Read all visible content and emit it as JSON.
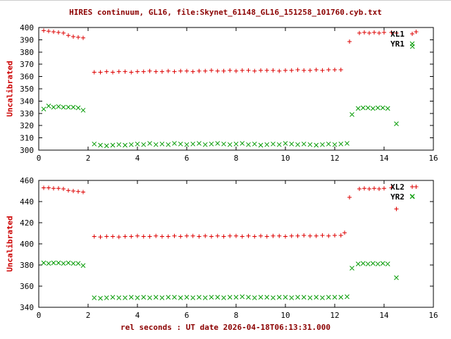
{
  "title": "HIRES continuum, GL16, file:Skynet_61148_GL16_151258_101760.cyb.txt",
  "xlabel": "rel seconds : UT date 2026-04-18T06:13:31.000",
  "colors": {
    "title": "#8b0000",
    "ylabel": "#cc0000",
    "xlabel": "#8b0000",
    "tick_label": "#000000",
    "border": "#000000",
    "red_series": "#dd0000",
    "green_series": "#009900",
    "background": "#ffffff"
  },
  "chart_data": [
    {
      "type": "scatter",
      "ylabel": "Uncalibrated",
      "xlim": [
        0,
        16
      ],
      "ylim": [
        300,
        400
      ],
      "xticks": [
        0,
        2,
        4,
        6,
        8,
        10,
        12,
        14,
        16
      ],
      "yticks": [
        300,
        310,
        320,
        330,
        340,
        350,
        360,
        370,
        380,
        390,
        400
      ],
      "grid": false,
      "legend_position": "top-right",
      "series": [
        {
          "name": "XL1",
          "marker": "plus",
          "color": "#dd0000",
          "points": [
            [
              0.2,
              397.5
            ],
            [
              0.4,
              397
            ],
            [
              0.6,
              396.5
            ],
            [
              0.8,
              396
            ],
            [
              1,
              395.5
            ],
            [
              1.2,
              393.5
            ],
            [
              1.4,
              392.5
            ],
            [
              1.6,
              392
            ],
            [
              1.8,
              391.5
            ],
            [
              2.25,
              363.5
            ],
            [
              2.5,
              363.5
            ],
            [
              2.75,
              364
            ],
            [
              3,
              363.5
            ],
            [
              3.25,
              364
            ],
            [
              3.5,
              364
            ],
            [
              3.75,
              363.5
            ],
            [
              4,
              364
            ],
            [
              4.25,
              364
            ],
            [
              4.5,
              364.5
            ],
            [
              4.75,
              364
            ],
            [
              5,
              364
            ],
            [
              5.25,
              364.5
            ],
            [
              5.5,
              364
            ],
            [
              5.75,
              364.5
            ],
            [
              6,
              364.5
            ],
            [
              6.25,
              364
            ],
            [
              6.5,
              364.5
            ],
            [
              6.75,
              364.5
            ],
            [
              7,
              365
            ],
            [
              7.25,
              364.5
            ],
            [
              7.5,
              364.5
            ],
            [
              7.75,
              365
            ],
            [
              8,
              364.5
            ],
            [
              8.25,
              365
            ],
            [
              8.5,
              365
            ],
            [
              8.75,
              364.5
            ],
            [
              9,
              365
            ],
            [
              9.25,
              365
            ],
            [
              9.5,
              365
            ],
            [
              9.75,
              364.5
            ],
            [
              10,
              365
            ],
            [
              10.25,
              365
            ],
            [
              10.5,
              365.5
            ],
            [
              10.75,
              365
            ],
            [
              11,
              365
            ],
            [
              11.25,
              365.5
            ],
            [
              11.5,
              365
            ],
            [
              11.75,
              365.5
            ],
            [
              12,
              365.5
            ],
            [
              12.25,
              365.5
            ],
            [
              12.6,
              388.5
            ],
            [
              13,
              395.5
            ],
            [
              13.2,
              396
            ],
            [
              13.4,
              395.5
            ],
            [
              13.6,
              396
            ],
            [
              13.8,
              395.5
            ],
            [
              14,
              396
            ],
            [
              14.3,
              396
            ],
            [
              14.5,
              395.5
            ],
            [
              15.3,
              396.5
            ]
          ]
        },
        {
          "name": "YR1",
          "marker": "cross",
          "color": "#009900",
          "points": [
            [
              0.2,
              333.5
            ],
            [
              0.4,
              336
            ],
            [
              0.6,
              335
            ],
            [
              0.8,
              335.5
            ],
            [
              1,
              335
            ],
            [
              1.2,
              335
            ],
            [
              1.4,
              335
            ],
            [
              1.6,
              334.5
            ],
            [
              1.8,
              332.5
            ],
            [
              2.25,
              305
            ],
            [
              2.5,
              304
            ],
            [
              2.75,
              303.5
            ],
            [
              3,
              304
            ],
            [
              3.25,
              304.5
            ],
            [
              3.5,
              304
            ],
            [
              3.75,
              304.5
            ],
            [
              4,
              305
            ],
            [
              4.25,
              304.5
            ],
            [
              4.5,
              305.5
            ],
            [
              4.75,
              304.5
            ],
            [
              5,
              305
            ],
            [
              5.25,
              304.5
            ],
            [
              5.5,
              305.5
            ],
            [
              5.75,
              305
            ],
            [
              6,
              304.5
            ],
            [
              6.25,
              305
            ],
            [
              6.5,
              305.5
            ],
            [
              6.75,
              304.5
            ],
            [
              7,
              305
            ],
            [
              7.25,
              305.5
            ],
            [
              7.5,
              305
            ],
            [
              7.75,
              304.5
            ],
            [
              8,
              305
            ],
            [
              8.25,
              305.5
            ],
            [
              8.5,
              304.5
            ],
            [
              8.75,
              305
            ],
            [
              9,
              304
            ],
            [
              9.25,
              304.5
            ],
            [
              9.5,
              305
            ],
            [
              9.75,
              304.5
            ],
            [
              10,
              305.5
            ],
            [
              10.25,
              305
            ],
            [
              10.5,
              304.5
            ],
            [
              10.75,
              305
            ],
            [
              11,
              304.5
            ],
            [
              11.25,
              304
            ],
            [
              11.5,
              304.5
            ],
            [
              11.75,
              305
            ],
            [
              12,
              304.5
            ],
            [
              12.25,
              305
            ],
            [
              12.5,
              305.5
            ],
            [
              12.7,
              329
            ],
            [
              12.95,
              334
            ],
            [
              13.15,
              334.5
            ],
            [
              13.35,
              334.5
            ],
            [
              13.55,
              334
            ],
            [
              13.75,
              334.5
            ],
            [
              13.95,
              334.5
            ],
            [
              14.15,
              334
            ],
            [
              14.5,
              321.5
            ],
            [
              15.15,
              384.5
            ]
          ]
        }
      ]
    },
    {
      "type": "scatter",
      "ylabel": "Uncalibrated",
      "xlim": [
        0,
        16
      ],
      "ylim": [
        340,
        460
      ],
      "xticks": [
        0,
        2,
        4,
        6,
        8,
        10,
        12,
        14,
        16
      ],
      "yticks": [
        340,
        360,
        380,
        400,
        420,
        440,
        460
      ],
      "grid": false,
      "legend_position": "top-right",
      "series": [
        {
          "name": "XL2",
          "marker": "plus",
          "color": "#dd0000",
          "points": [
            [
              0.2,
              453
            ],
            [
              0.4,
              453
            ],
            [
              0.6,
              452.5
            ],
            [
              0.8,
              452.5
            ],
            [
              1,
              452
            ],
            [
              1.2,
              450.5
            ],
            [
              1.4,
              450
            ],
            [
              1.6,
              449.5
            ],
            [
              1.8,
              449
            ],
            [
              2.25,
              407
            ],
            [
              2.5,
              406.5
            ],
            [
              2.75,
              407
            ],
            [
              3,
              407
            ],
            [
              3.25,
              406.5
            ],
            [
              3.5,
              407
            ],
            [
              3.75,
              407
            ],
            [
              4,
              407.5
            ],
            [
              4.25,
              407
            ],
            [
              4.5,
              407
            ],
            [
              4.75,
              407.5
            ],
            [
              5,
              407
            ],
            [
              5.25,
              407
            ],
            [
              5.5,
              407.5
            ],
            [
              5.75,
              407
            ],
            [
              6,
              407.5
            ],
            [
              6.25,
              407.5
            ],
            [
              6.5,
              407
            ],
            [
              6.75,
              407.5
            ],
            [
              7,
              407
            ],
            [
              7.25,
              407.5
            ],
            [
              7.5,
              407
            ],
            [
              7.75,
              407.5
            ],
            [
              8,
              407.5
            ],
            [
              8.25,
              407
            ],
            [
              8.5,
              407.5
            ],
            [
              8.75,
              407
            ],
            [
              9,
              407.5
            ],
            [
              9.25,
              407
            ],
            [
              9.5,
              407.5
            ],
            [
              9.75,
              407.5
            ],
            [
              10,
              407
            ],
            [
              10.25,
              407.5
            ],
            [
              10.5,
              407.5
            ],
            [
              10.75,
              408
            ],
            [
              11,
              407.5
            ],
            [
              11.25,
              407.5
            ],
            [
              11.5,
              408
            ],
            [
              11.75,
              407.5
            ],
            [
              12,
              408
            ],
            [
              12.25,
              408
            ],
            [
              12.4,
              410.5
            ],
            [
              12.6,
              444
            ],
            [
              13,
              452
            ],
            [
              13.2,
              452.5
            ],
            [
              13.4,
              452
            ],
            [
              13.6,
              452.5
            ],
            [
              13.8,
              452
            ],
            [
              14,
              452.5
            ],
            [
              14.3,
              453
            ],
            [
              14.5,
              433
            ],
            [
              15.3,
              454
            ]
          ]
        },
        {
          "name": "YR2",
          "marker": "cross",
          "color": "#009900",
          "points": [
            [
              0.2,
              382
            ],
            [
              0.4,
              381.5
            ],
            [
              0.6,
              382
            ],
            [
              0.8,
              382
            ],
            [
              1,
              381.5
            ],
            [
              1.2,
              382
            ],
            [
              1.4,
              381.5
            ],
            [
              1.6,
              381.5
            ],
            [
              1.8,
              379.5
            ],
            [
              2.25,
              349
            ],
            [
              2.5,
              348.5
            ],
            [
              2.75,
              349
            ],
            [
              3,
              349.5
            ],
            [
              3.25,
              349
            ],
            [
              3.5,
              349
            ],
            [
              3.75,
              349.5
            ],
            [
              4,
              349
            ],
            [
              4.25,
              349.5
            ],
            [
              4.5,
              349
            ],
            [
              4.75,
              349.5
            ],
            [
              5,
              349
            ],
            [
              5.25,
              349.5
            ],
            [
              5.5,
              349.5
            ],
            [
              5.75,
              349
            ],
            [
              6,
              349.5
            ],
            [
              6.25,
              349
            ],
            [
              6.5,
              349.5
            ],
            [
              6.75,
              349
            ],
            [
              7,
              349.5
            ],
            [
              7.25,
              349.5
            ],
            [
              7.5,
              349
            ],
            [
              7.75,
              349.5
            ],
            [
              8,
              349.5
            ],
            [
              8.25,
              350
            ],
            [
              8.5,
              349.5
            ],
            [
              8.75,
              349
            ],
            [
              9,
              349.5
            ],
            [
              9.25,
              349.5
            ],
            [
              9.5,
              349
            ],
            [
              9.75,
              349.5
            ],
            [
              10,
              349.5
            ],
            [
              10.25,
              349
            ],
            [
              10.5,
              349.5
            ],
            [
              10.75,
              349.5
            ],
            [
              11,
              349
            ],
            [
              11.25,
              349.5
            ],
            [
              11.5,
              349
            ],
            [
              11.75,
              349.5
            ],
            [
              12,
              349.5
            ],
            [
              12.25,
              349.5
            ],
            [
              12.5,
              350
            ],
            [
              12.7,
              377
            ],
            [
              12.95,
              381
            ],
            [
              13.15,
              381.5
            ],
            [
              13.35,
              381
            ],
            [
              13.55,
              381.5
            ],
            [
              13.75,
              381
            ],
            [
              13.95,
              381.5
            ],
            [
              14.15,
              381
            ],
            [
              14.5,
              368
            ],
            [
              15.15,
              445
            ]
          ]
        }
      ]
    }
  ]
}
